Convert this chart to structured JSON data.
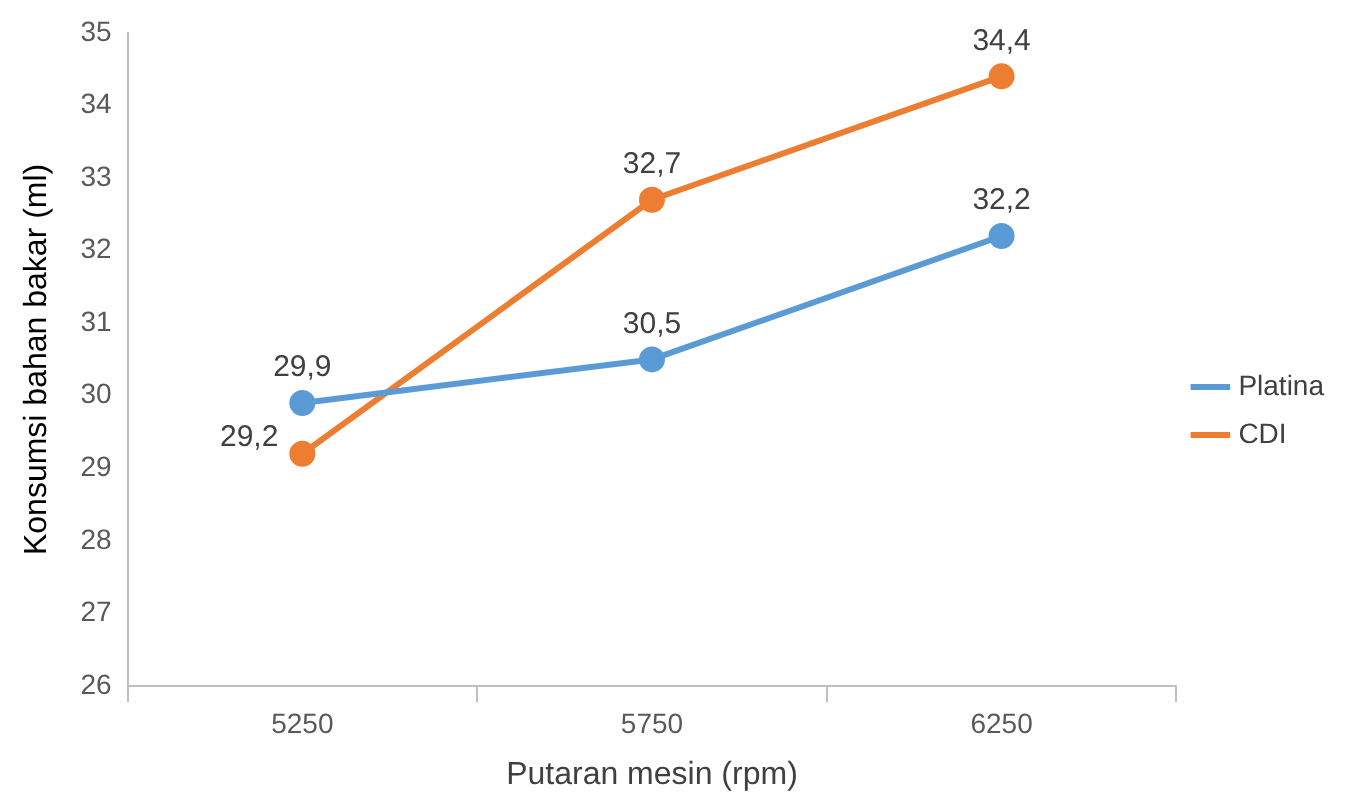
{
  "chart_data": {
    "type": "line",
    "xlabel": "Putaran mesin (rpm)",
    "ylabel": "Konsumsi bahan bakar (ml)",
    "categories": [
      "5250",
      "5750",
      "6250"
    ],
    "ylim": [
      26,
      35
    ],
    "yticks": [
      26,
      27,
      28,
      29,
      30,
      31,
      32,
      33,
      34,
      35
    ],
    "grid": false,
    "legend": "right",
    "marker": "circle",
    "series": [
      {
        "name": "Platina",
        "color": "#5b9bd5",
        "values": [
          29.9,
          30.5,
          32.2
        ],
        "value_labels": [
          "29,9",
          "30,5",
          "32,2"
        ]
      },
      {
        "name": "CDI",
        "color": "#ed7d31",
        "values": [
          29.2,
          32.7,
          34.4
        ],
        "value_labels": [
          "29,2",
          "32,7",
          "34,4"
        ]
      }
    ]
  }
}
